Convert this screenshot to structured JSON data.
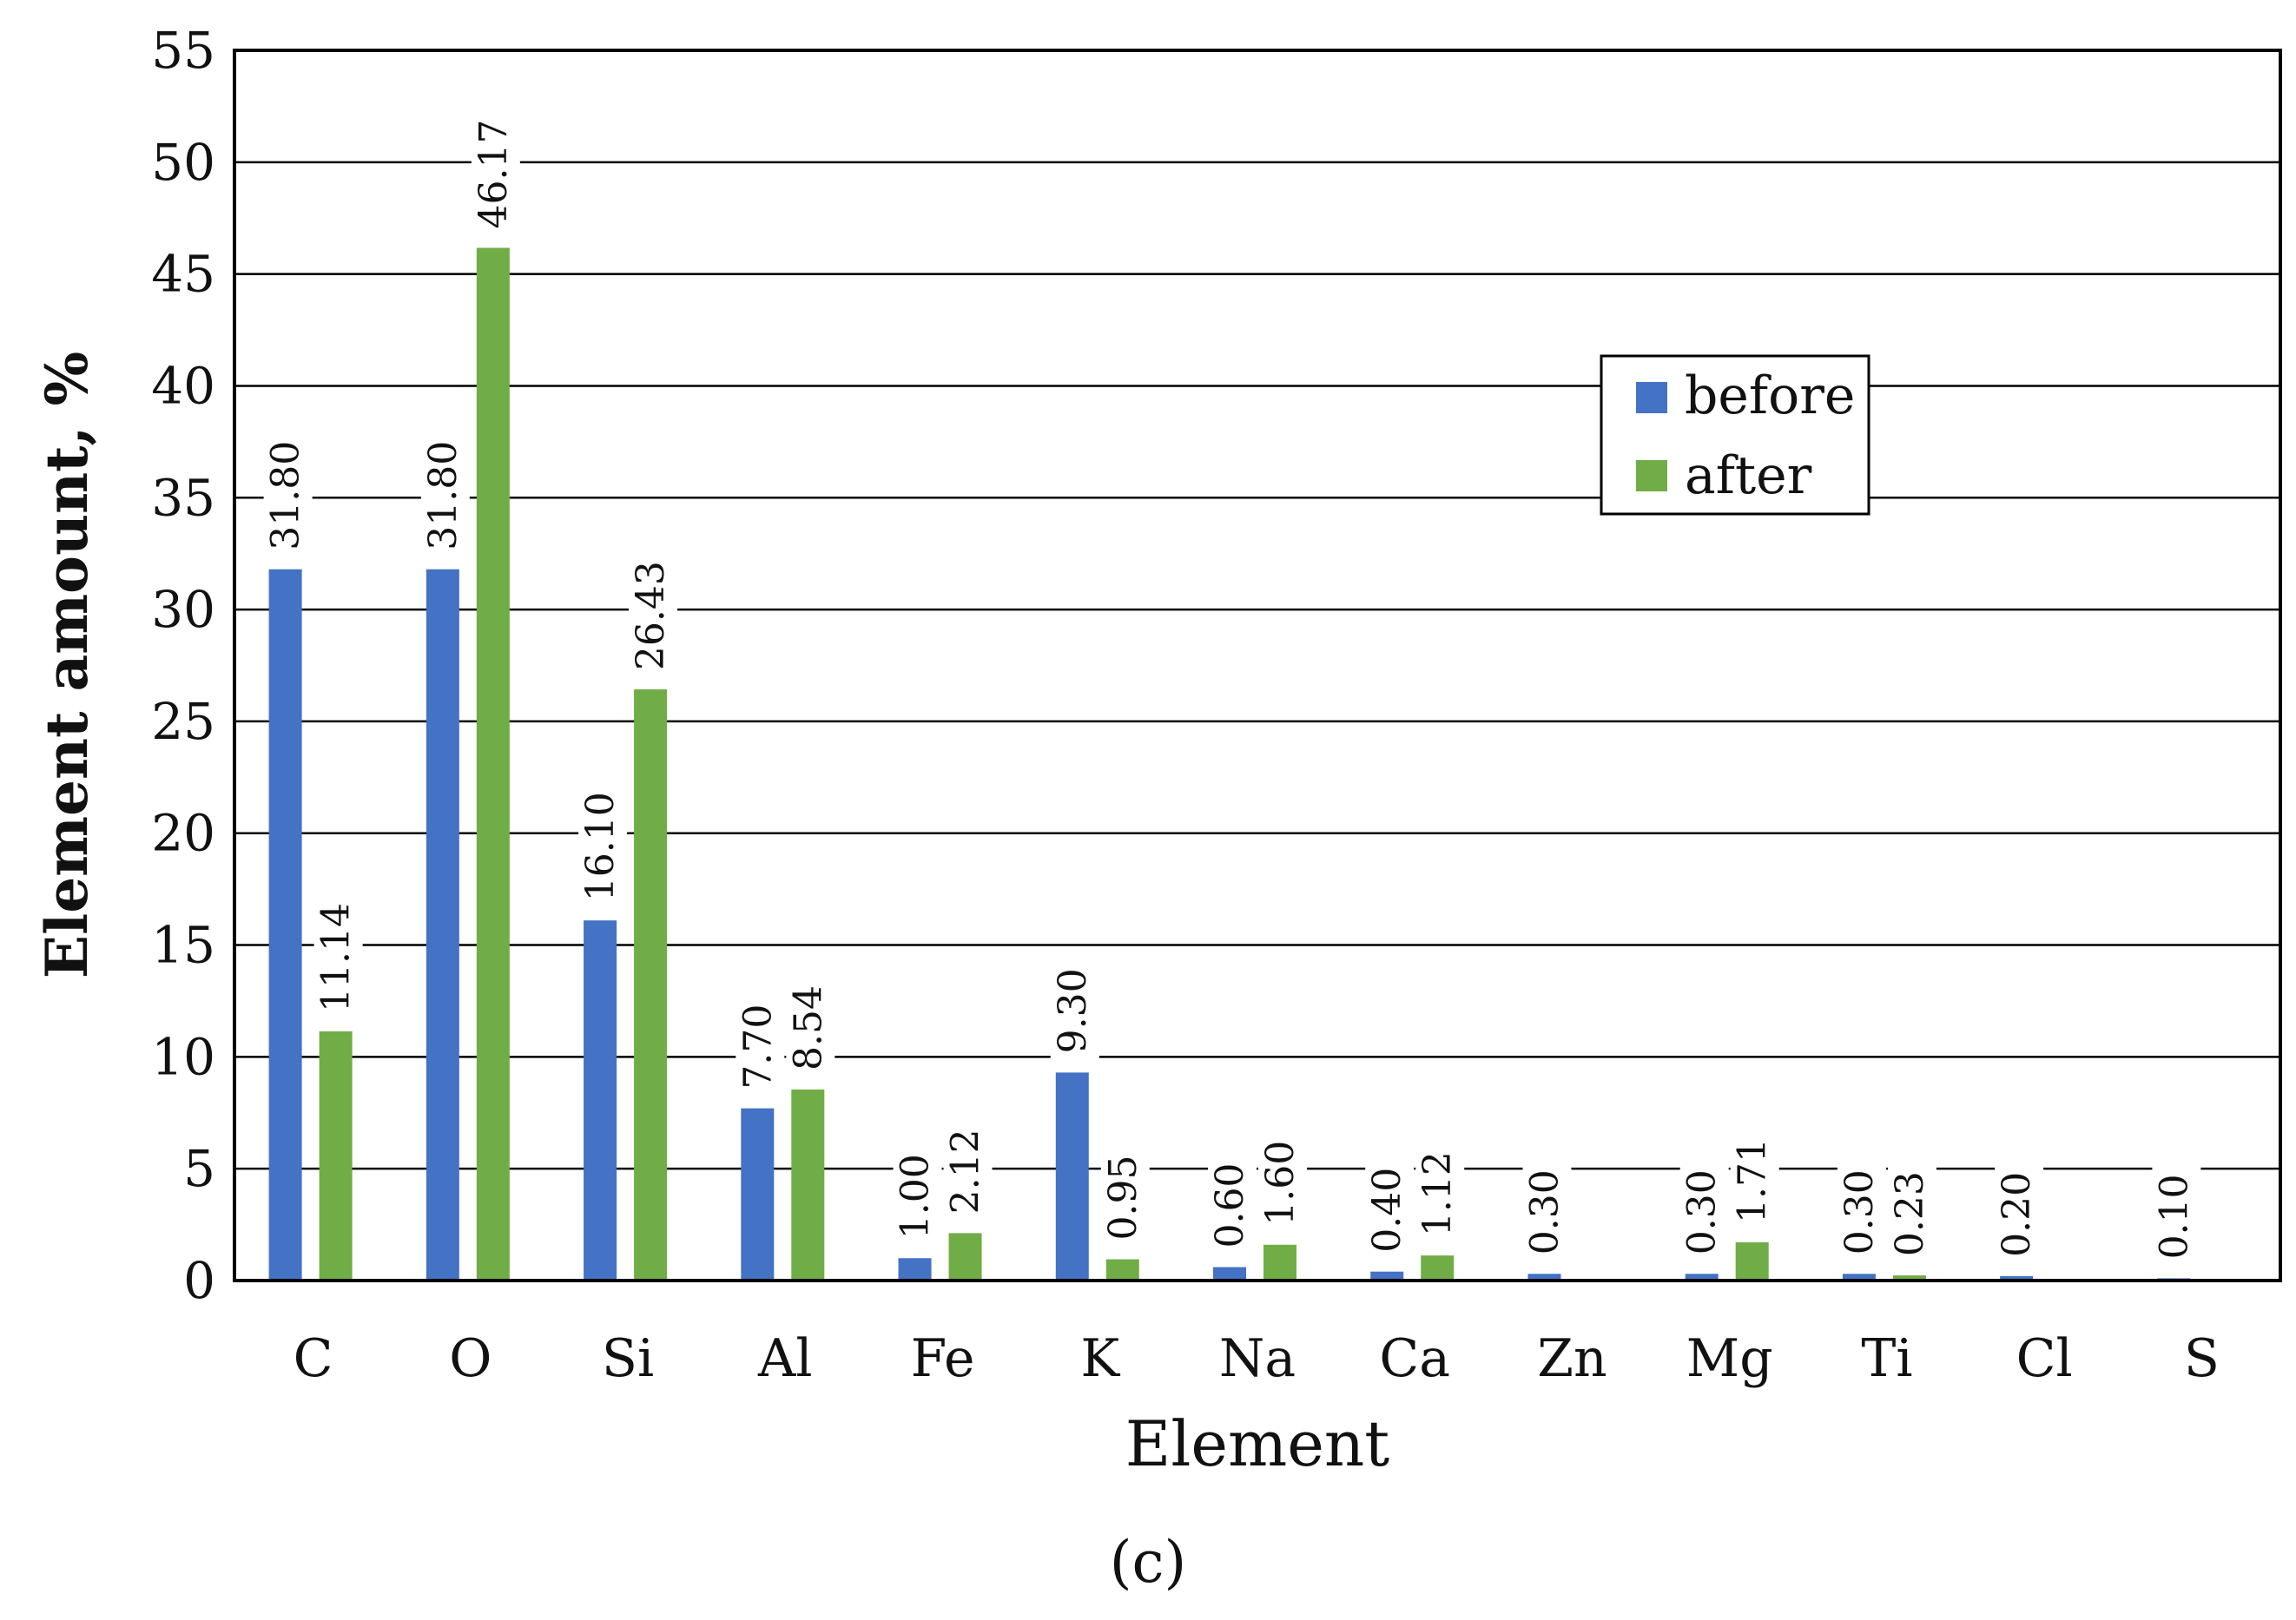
{
  "chart_data": {
    "type": "bar",
    "categories": [
      "C",
      "O",
      "Si",
      "Al",
      "Fe",
      "K",
      "Na",
      "Ca",
      "Zn",
      "Mg",
      "Ti",
      "Cl",
      "S"
    ],
    "series": [
      {
        "name": "before",
        "color": "#4472C4",
        "values": [
          31.8,
          31.8,
          16.1,
          7.7,
          1.0,
          9.3,
          0.6,
          0.4,
          0.3,
          0.3,
          0.3,
          0.2,
          0.1
        ],
        "labels": [
          "31.80",
          "31.80",
          "16.10",
          "7.70",
          "1.00",
          "9.30",
          "0.60",
          "0.40",
          "0.30",
          "0.30",
          "0.30",
          "0.20",
          "0.10"
        ]
      },
      {
        "name": "after",
        "color": "#70AD47",
        "values": [
          11.14,
          46.17,
          26.43,
          8.54,
          2.12,
          0.95,
          1.6,
          1.12,
          null,
          1.71,
          0.23,
          null,
          null
        ],
        "labels": [
          "11.14",
          "46.17",
          "26.43",
          "8.54",
          "2.12",
          "0.95",
          "1.60",
          "1.12",
          null,
          "1.71",
          "0.23",
          null,
          null
        ]
      }
    ],
    "xlabel": "Element",
    "ylabel": "Element amount, %",
    "ylim": [
      0,
      55
    ],
    "yticks": [
      "0",
      "5",
      "10",
      "15",
      "20",
      "25",
      "30",
      "35",
      "40",
      "45",
      "50",
      "55"
    ],
    "grid": true,
    "legend_position": "upper-right-center"
  },
  "caption": "(c)"
}
